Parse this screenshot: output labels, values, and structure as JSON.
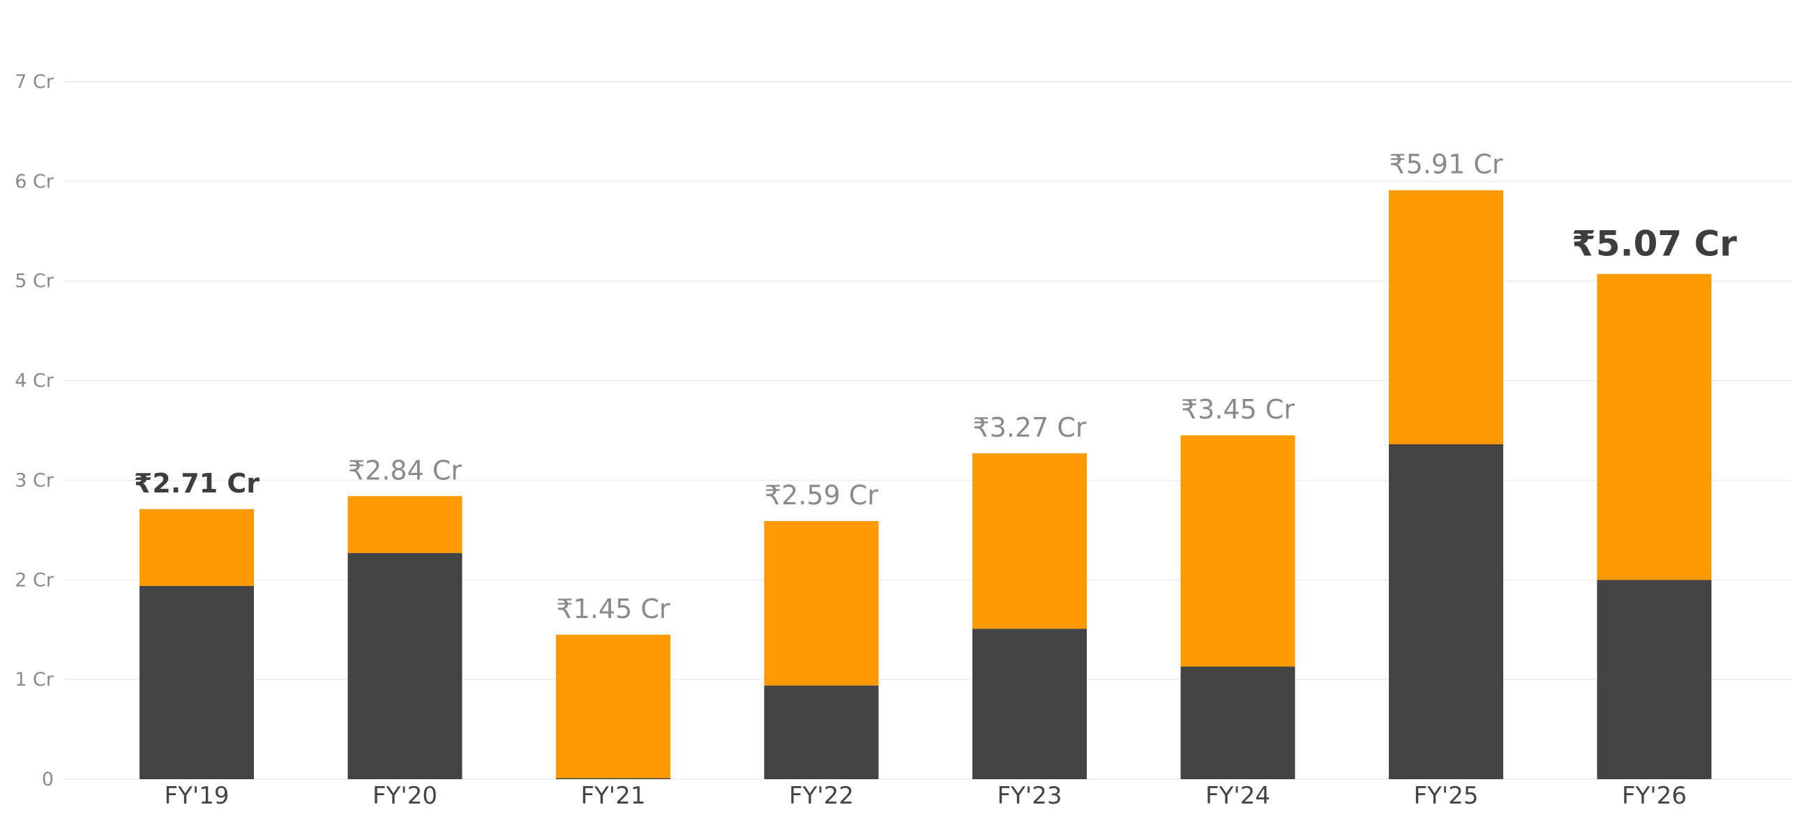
{
  "colors": {
    "bottom": "#434343",
    "top": "#FF9900",
    "grid": "#ececec",
    "tick_text": "#8a8a8a",
    "category_text": "#444444",
    "highlight_text": "#3d3d3d"
  },
  "chart_data": {
    "type": "bar",
    "stacked": true,
    "categories": [
      "FY'19",
      "FY'20",
      "FY'21",
      "FY'22",
      "FY'23",
      "FY'24",
      "FY'25",
      "FY'26"
    ],
    "series": [
      {
        "color": "#434343",
        "values": [
          1.94,
          2.27,
          0.01,
          0.94,
          1.51,
          1.13,
          3.36,
          2.0
        ]
      },
      {
        "color": "#FF9900",
        "values": [
          0.77,
          0.57,
          1.44,
          1.65,
          1.76,
          2.32,
          2.55,
          3.07
        ]
      }
    ],
    "totals": [
      2.71,
      2.84,
      1.45,
      2.59,
      3.27,
      3.45,
      5.91,
      5.07
    ],
    "total_labels": [
      "₹2.71 Cr",
      "₹2.84 Cr",
      "₹1.45 Cr",
      "₹2.59 Cr",
      "₹3.27 Cr",
      "₹3.45 Cr",
      "₹5.91 Cr",
      "₹5.07 Cr"
    ],
    "highlighted_labels": [
      "FY'19",
      "FY'26"
    ],
    "ylim": [
      0,
      7
    ],
    "yticks": [
      0,
      1,
      2,
      3,
      4,
      5,
      6,
      7
    ],
    "ytick_labels": [
      "0",
      "1 Cr",
      "2 Cr",
      "3 Cr",
      "4 Cr",
      "5 Cr",
      "6 Cr",
      "7 Cr"
    ],
    "grid": true,
    "legend": "none"
  }
}
